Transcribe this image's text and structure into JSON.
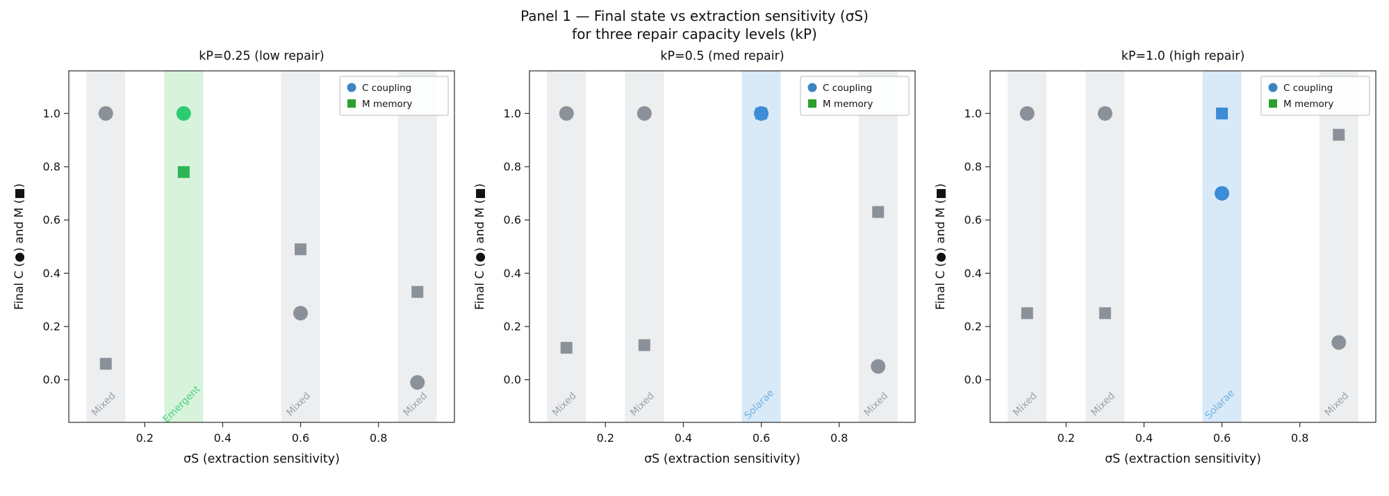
{
  "chart_data": {
    "type": "scatter",
    "title_line1": "Panel 1 — Final state vs extraction sensitivity (σS)",
    "title_line2": "for three repair capacity levels (kP)",
    "xlabel": "σS (extraction sensitivity)",
    "ylabel": "Final C (●) and M (■)",
    "xlim": [
      0.005,
      0.995
    ],
    "ylim": [
      -0.16,
      1.16
    ],
    "xticks": [
      0.2,
      0.4,
      0.6,
      0.8
    ],
    "yticks": [
      0.0,
      0.2,
      0.4,
      0.6,
      0.8,
      1.0
    ],
    "band_half_width": 0.05,
    "band_label_y": -0.1,
    "legend": [
      {
        "label": "C coupling",
        "marker": "circle",
        "color": "#3d85c2"
      },
      {
        "label": "M memory",
        "marker": "square",
        "color": "#2ca02c"
      }
    ],
    "panels": [
      {
        "title": "kP=0.25 (low repair)",
        "points": [
          {
            "x": 0.1,
            "regime": "Mixed",
            "C": 1.0,
            "M": 0.06
          },
          {
            "x": 0.3,
            "regime": "Emergent",
            "C": 1.0,
            "M": 0.78
          },
          {
            "x": 0.6,
            "regime": "Mixed",
            "C": 0.25,
            "M": 0.49
          },
          {
            "x": 0.9,
            "regime": "Mixed",
            "C": -0.01,
            "M": 0.33
          }
        ]
      },
      {
        "title": "kP=0.5 (med repair)",
        "points": [
          {
            "x": 0.1,
            "regime": "Mixed",
            "C": 1.0,
            "M": 0.12
          },
          {
            "x": 0.3,
            "regime": "Mixed",
            "C": 1.0,
            "M": 0.13
          },
          {
            "x": 0.6,
            "regime": "Solarae",
            "C": 1.0,
            "M": 1.0
          },
          {
            "x": 0.9,
            "regime": "Mixed",
            "C": 0.05,
            "M": 0.63
          }
        ]
      },
      {
        "title": "kP=1.0 (high repair)",
        "points": [
          {
            "x": 0.1,
            "regime": "Mixed",
            "C": 1.0,
            "M": 0.25
          },
          {
            "x": 0.3,
            "regime": "Mixed",
            "C": 1.0,
            "M": 0.25
          },
          {
            "x": 0.6,
            "regime": "Solarae",
            "C": 0.7,
            "M": 1.0
          },
          {
            "x": 0.9,
            "regime": "Mixed",
            "C": 0.14,
            "M": 0.92
          }
        ]
      }
    ]
  },
  "style": {
    "background": "#ffffff",
    "spine_color": "#2a2a2a",
    "text_color": "#111111",
    "legend_border": "#b8b8b8",
    "legend_bg": "#ffffff",
    "regimes": {
      "Mixed": {
        "band": "#eceef0",
        "circle": "#8b9199",
        "square": "#8b9199",
        "label": "#9ba1a9"
      },
      "Emergent": {
        "band": "#d8f3dc",
        "circle": "#2ecc71",
        "square": "#2eb656",
        "label": "#44cf7c"
      },
      "Solarae": {
        "band": "#d8e9f8",
        "circle": "#3d8cd6",
        "square": "#3d8cd6",
        "label": "#70b1e0"
      }
    }
  }
}
